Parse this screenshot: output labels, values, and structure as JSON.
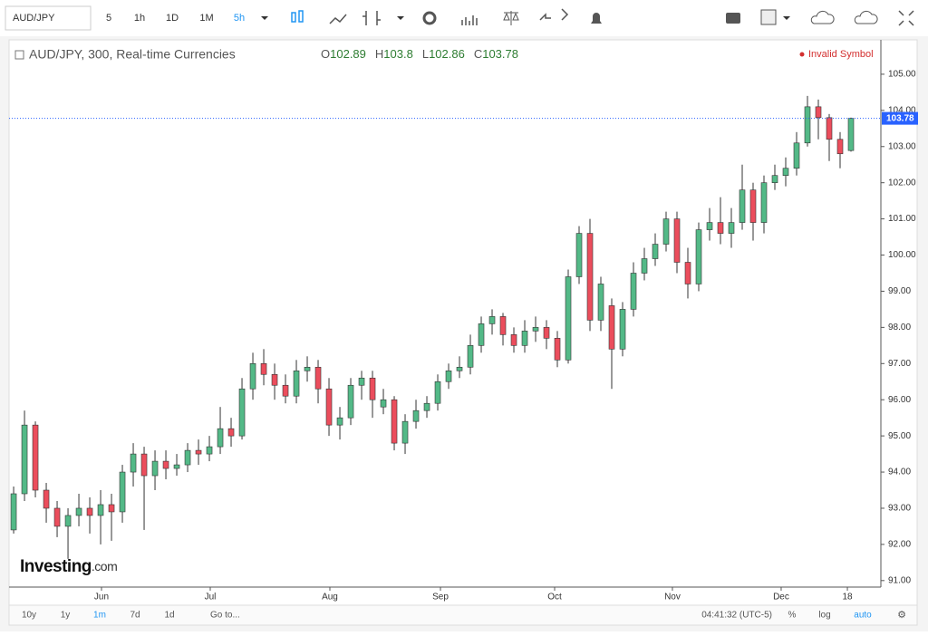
{
  "toolbar": {
    "symbol": "AUD/JPY",
    "intervals": [
      "5",
      "1h",
      "1D",
      "1M",
      "5h"
    ]
  },
  "chart_data": {
    "type": "candlestick",
    "title": "AUD/JPY, 300, Real-time Currencies",
    "ohlc_legend": [
      {
        "key": "O",
        "value": 102.89
      },
      {
        "key": "H",
        "value": 103.8
      },
      {
        "key": "L",
        "value": 102.86
      },
      {
        "key": "C",
        "value": 103.78
      }
    ],
    "status": "Invalid Symbol",
    "last_price": 103.78,
    "last_price_label": "103.78",
    "up_color": "#53b987",
    "down_color": "#eb4d5c",
    "open": [
      92.4,
      93.4,
      95.3,
      93.5,
      93.0,
      92.5,
      92.8,
      93.0,
      92.8,
      93.1,
      92.9,
      94.0,
      94.5,
      93.9,
      94.3,
      94.1,
      94.2,
      94.6,
      94.5,
      94.7,
      95.2,
      95.0,
      96.3,
      97.0,
      96.7,
      96.4,
      96.1,
      96.8,
      96.9,
      96.3,
      95.3,
      95.5,
      96.4,
      96.6,
      95.8,
      96.0,
      94.8,
      95.4,
      95.7,
      95.9,
      96.5,
      96.8,
      96.9,
      97.5,
      98.1,
      98.3,
      97.8,
      97.5,
      97.9,
      98.0,
      97.7,
      97.1,
      99.4,
      100.6,
      98.2,
      98.6,
      97.4,
      98.5,
      99.5,
      99.9,
      100.3,
      101.0,
      99.8,
      99.2,
      100.7,
      100.9,
      100.6,
      100.9,
      101.8,
      100.9,
      102.0,
      102.2,
      102.4,
      103.1,
      104.1,
      103.8,
      103.2,
      102.89
    ],
    "high": [
      93.6,
      95.7,
      95.4,
      93.7,
      93.2,
      93.0,
      93.4,
      93.3,
      93.5,
      93.4,
      94.2,
      94.8,
      94.7,
      94.6,
      94.6,
      94.5,
      94.8,
      94.9,
      95.0,
      95.8,
      95.5,
      96.6,
      97.3,
      97.4,
      97.0,
      96.7,
      97.1,
      97.2,
      97.1,
      96.6,
      95.8,
      96.6,
      96.8,
      96.8,
      96.3,
      96.1,
      95.6,
      96.0,
      96.1,
      96.7,
      97.0,
      97.2,
      97.8,
      98.3,
      98.5,
      98.4,
      98.0,
      98.2,
      98.3,
      98.2,
      97.9,
      99.6,
      100.8,
      101.0,
      99.4,
      98.8,
      98.7,
      99.8,
      100.2,
      100.6,
      101.2,
      101.2,
      100.2,
      100.9,
      101.3,
      101.6,
      101.3,
      102.5,
      102.0,
      102.2,
      102.5,
      102.7,
      103.4,
      104.4,
      104.3,
      103.9,
      103.4,
      103.8
    ],
    "low": [
      92.3,
      93.2,
      93.3,
      92.6,
      92.2,
      91.6,
      92.5,
      92.3,
      92.0,
      92.1,
      92.6,
      93.6,
      92.4,
      93.5,
      93.8,
      93.9,
      94.0,
      94.2,
      94.3,
      94.5,
      94.7,
      94.9,
      96.0,
      96.4,
      96.0,
      95.9,
      95.9,
      96.5,
      95.9,
      95.0,
      94.9,
      95.3,
      96.0,
      95.5,
      95.6,
      94.6,
      94.5,
      95.2,
      95.5,
      95.7,
      96.3,
      96.6,
      96.7,
      97.3,
      97.8,
      97.5,
      97.3,
      97.3,
      97.6,
      97.4,
      96.9,
      97.0,
      99.2,
      97.9,
      97.9,
      96.3,
      97.2,
      98.3,
      99.3,
      99.7,
      100.1,
      99.5,
      98.8,
      99.0,
      100.4,
      100.3,
      100.2,
      100.7,
      100.4,
      100.6,
      101.8,
      101.9,
      102.2,
      103.0,
      103.2,
      102.6,
      102.4,
      102.86
    ],
    "close": [
      93.4,
      95.3,
      93.5,
      93.0,
      92.5,
      92.8,
      93.0,
      92.8,
      93.1,
      92.9,
      94.0,
      94.5,
      93.9,
      94.3,
      94.1,
      94.2,
      94.6,
      94.5,
      94.7,
      95.2,
      95.0,
      96.3,
      97.0,
      96.7,
      96.4,
      96.1,
      96.8,
      96.9,
      96.3,
      95.3,
      95.5,
      96.4,
      96.6,
      96.0,
      96.0,
      94.8,
      95.4,
      95.7,
      95.9,
      96.5,
      96.8,
      96.9,
      97.5,
      98.1,
      98.3,
      97.8,
      97.5,
      97.9,
      98.0,
      97.7,
      97.1,
      99.4,
      100.6,
      98.2,
      99.2,
      97.4,
      98.5,
      99.5,
      99.9,
      100.3,
      101.0,
      99.8,
      99.2,
      100.7,
      100.9,
      100.6,
      100.9,
      101.8,
      100.9,
      102.0,
      102.2,
      102.4,
      103.1,
      104.1,
      103.8,
      103.2,
      102.8,
      103.78
    ],
    "xlim": [
      -0.42,
      79.75
    ],
    "xticks": [
      {
        "value": 8.08,
        "label": "Jun"
      },
      {
        "value": 18.08,
        "label": "Jul"
      },
      {
        "value": 29.08,
        "label": "Aug"
      },
      {
        "value": 39.25,
        "label": "Sep"
      },
      {
        "value": 49.75,
        "label": "Oct"
      },
      {
        "value": 60.58,
        "label": "Nov"
      },
      {
        "value": 70.58,
        "label": "Dec"
      },
      {
        "value": 76.67,
        "label": "18"
      }
    ],
    "ylim": [
      90.82,
      105.95
    ],
    "yticks": [
      {
        "value": 91,
        "label": "91.00"
      },
      {
        "value": 92,
        "label": "92.00"
      },
      {
        "value": 93,
        "label": "93.00"
      },
      {
        "value": 94,
        "label": "94.00"
      },
      {
        "value": 95,
        "label": "95.00"
      },
      {
        "value": 96,
        "label": "96.00"
      },
      {
        "value": 97,
        "label": "97.00"
      },
      {
        "value": 98,
        "label": "98.00"
      },
      {
        "value": 99,
        "label": "99.00"
      },
      {
        "value": 100,
        "label": "100.00"
      },
      {
        "value": 101,
        "label": "101.00"
      },
      {
        "value": 102,
        "label": "102.00"
      },
      {
        "value": 103,
        "label": "103.00"
      },
      {
        "value": 104,
        "label": "104.00"
      },
      {
        "value": 105,
        "label": "105.00"
      }
    ]
  },
  "logo": {
    "brand": "Investing",
    "suffix": ".com"
  },
  "footer": {
    "ranges": [
      "10y",
      "1y",
      "1m",
      "7d",
      "1d",
      "Go to..."
    ],
    "time": "04:41:32 (UTC-5)",
    "options": [
      "%",
      "log",
      "auto"
    ]
  }
}
